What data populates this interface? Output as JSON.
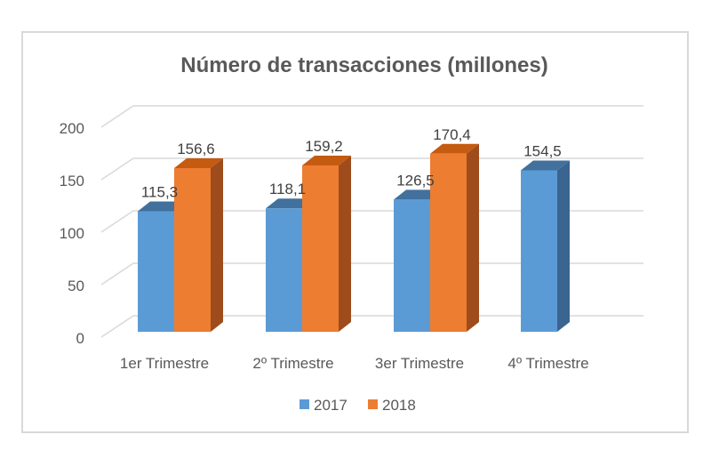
{
  "chart_data": {
    "type": "bar",
    "title": "Número de transacciones (millones)",
    "xlabel": "",
    "ylabel": "",
    "categories": [
      "1er Trimestre",
      "2º Trimestre",
      "3er Trimestre",
      "4º Trimestre"
    ],
    "series": [
      {
        "name": "2017",
        "values": [
          115.3,
          118.1,
          126.5,
          154.5
        ],
        "labels": [
          "115,3",
          "118,1",
          "126,5",
          "154,5"
        ],
        "color": "#5b9bd5",
        "top_color": "#41719c",
        "side_color": "#3a6590"
      },
      {
        "name": "2018",
        "values": [
          156.6,
          159.2,
          170.4,
          null
        ],
        "labels": [
          "156,6",
          "159,2",
          "170,4",
          null
        ],
        "color": "#ed7d31",
        "top_color": "#c55a11",
        "side_color": "#9e4c1c"
      }
    ],
    "ylim": [
      0,
      200
    ],
    "yticks": [
      0,
      50,
      100,
      150,
      200
    ],
    "ytick_labels": [
      "0",
      "50",
      "100",
      "150",
      "200"
    ],
    "grid": true,
    "legend_position": "bottom",
    "style": "3d-clustered-column"
  }
}
